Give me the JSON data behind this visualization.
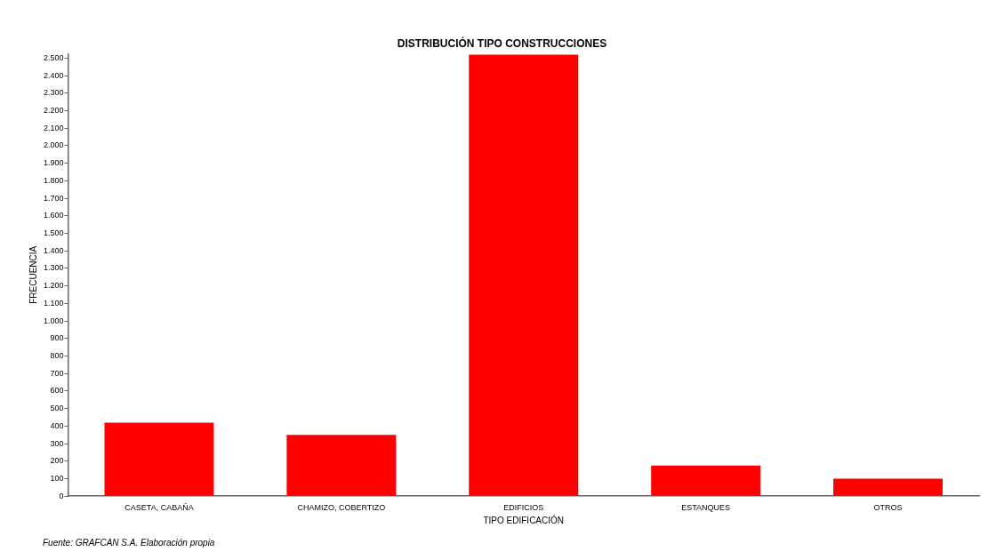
{
  "chart_data": {
    "type": "bar",
    "title": "DISTRIBUCIÓN TIPO CONSTRUCCIONES",
    "xlabel": "TIPO EDIFICACIÓN",
    "ylabel": "FRECUENCIA",
    "categories": [
      "CASETA, CABAÑA",
      "CHAMIZO, COBERTIZO",
      "EDIFICIOS",
      "ESTANQUES",
      "OTROS"
    ],
    "values": [
      420,
      350,
      2520,
      175,
      100
    ],
    "color": "#ff0000",
    "ylim": [
      0,
      2525
    ],
    "yticks": [
      0,
      100,
      200,
      300,
      400,
      500,
      600,
      700,
      800,
      900,
      {
        "value": 1000,
        "label": "1.000"
      },
      {
        "value": 1100,
        "label": "1.100"
      },
      {
        "value": 1200,
        "label": "1.200"
      },
      {
        "value": 1300,
        "label": "1.300"
      },
      {
        "value": 1400,
        "label": "1.400"
      },
      {
        "value": 1500,
        "label": "1.500"
      },
      {
        "value": 1600,
        "label": "1.600"
      },
      {
        "value": 1700,
        "label": "1.700"
      },
      {
        "value": 1800,
        "label": "1.800"
      },
      {
        "value": 1900,
        "label": "1.900"
      },
      {
        "value": 2000,
        "label": "2.000"
      },
      {
        "value": 2100,
        "label": "2.100"
      },
      {
        "value": 2200,
        "label": "2.200"
      },
      {
        "value": 2300,
        "label": "2.300"
      },
      {
        "value": 2400,
        "label": "2.400"
      },
      {
        "value": 2500,
        "label": "2.500"
      }
    ],
    "grid": false,
    "legend": false,
    "annotations": [
      "Fuente: GRAFCAN S.A. Elaboración propia"
    ]
  }
}
